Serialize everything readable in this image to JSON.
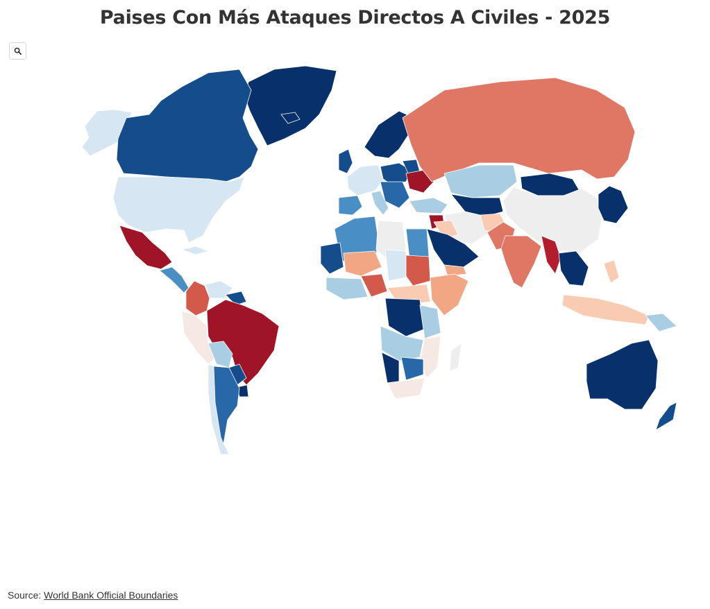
{
  "title": "Paises Con Más Ataques Directos A Civiles - 2025",
  "zoom": {
    "icon": "search-icon"
  },
  "source": {
    "label": "Source:",
    "link_text": "World Bank Official Boundaries"
  },
  "colors": {
    "darkest_blue": "#08306b",
    "dark_blue": "#144c8c",
    "blue": "#2868a8",
    "mid_blue": "#4a8ec6",
    "light_blue": "#a9cde3",
    "pale_blue": "#d6e6f2",
    "neutral": "#eeeeee",
    "pale_pink": "#f6e8e2",
    "light_peach": "#f9cbb2",
    "peach": "#f2a784",
    "salmon": "#e07764",
    "red": "#d3594a",
    "dark_red": "#b31d2d",
    "darkest_red": "#a01427"
  }
}
